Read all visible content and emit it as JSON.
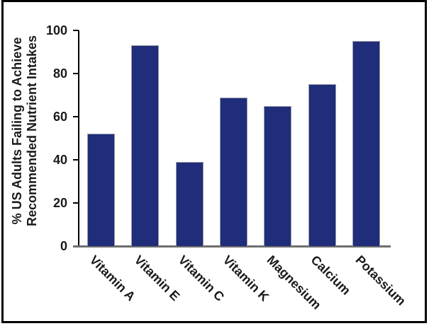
{
  "figure": {
    "background_color": "#FFFFFF",
    "border_color": "#000000"
  },
  "chart_data": {
    "type": "bar",
    "title": "",
    "xlabel": "",
    "ylabel": "% US Adults Failing to Achieve Recommended Nutrient Intakes",
    "ylabel_lines": {
      "line1": "% US Adults Failing to Achieve",
      "line2": "Recommended Nutrient Intakes"
    },
    "categories": [
      "Vitamin A",
      "Vitamin E",
      "Vitamin C",
      "Vitamin K",
      "Magnesium",
      "Calcium",
      "Potassium"
    ],
    "values": [
      52,
      93,
      39,
      69,
      65,
      75,
      95
    ],
    "ylim": [
      0,
      100
    ],
    "yticks": [
      0,
      20,
      40,
      60,
      80,
      100
    ],
    "grid": "off",
    "legend": "none",
    "x_tick_label_rotation_deg": 45,
    "bar_color": "#1F2D7B",
    "bar_border_color": "#9A9AA8",
    "y_axis_color": "#000000",
    "x_axis_color": "#6E6E6E",
    "text_color": "#1A1A1A"
  }
}
